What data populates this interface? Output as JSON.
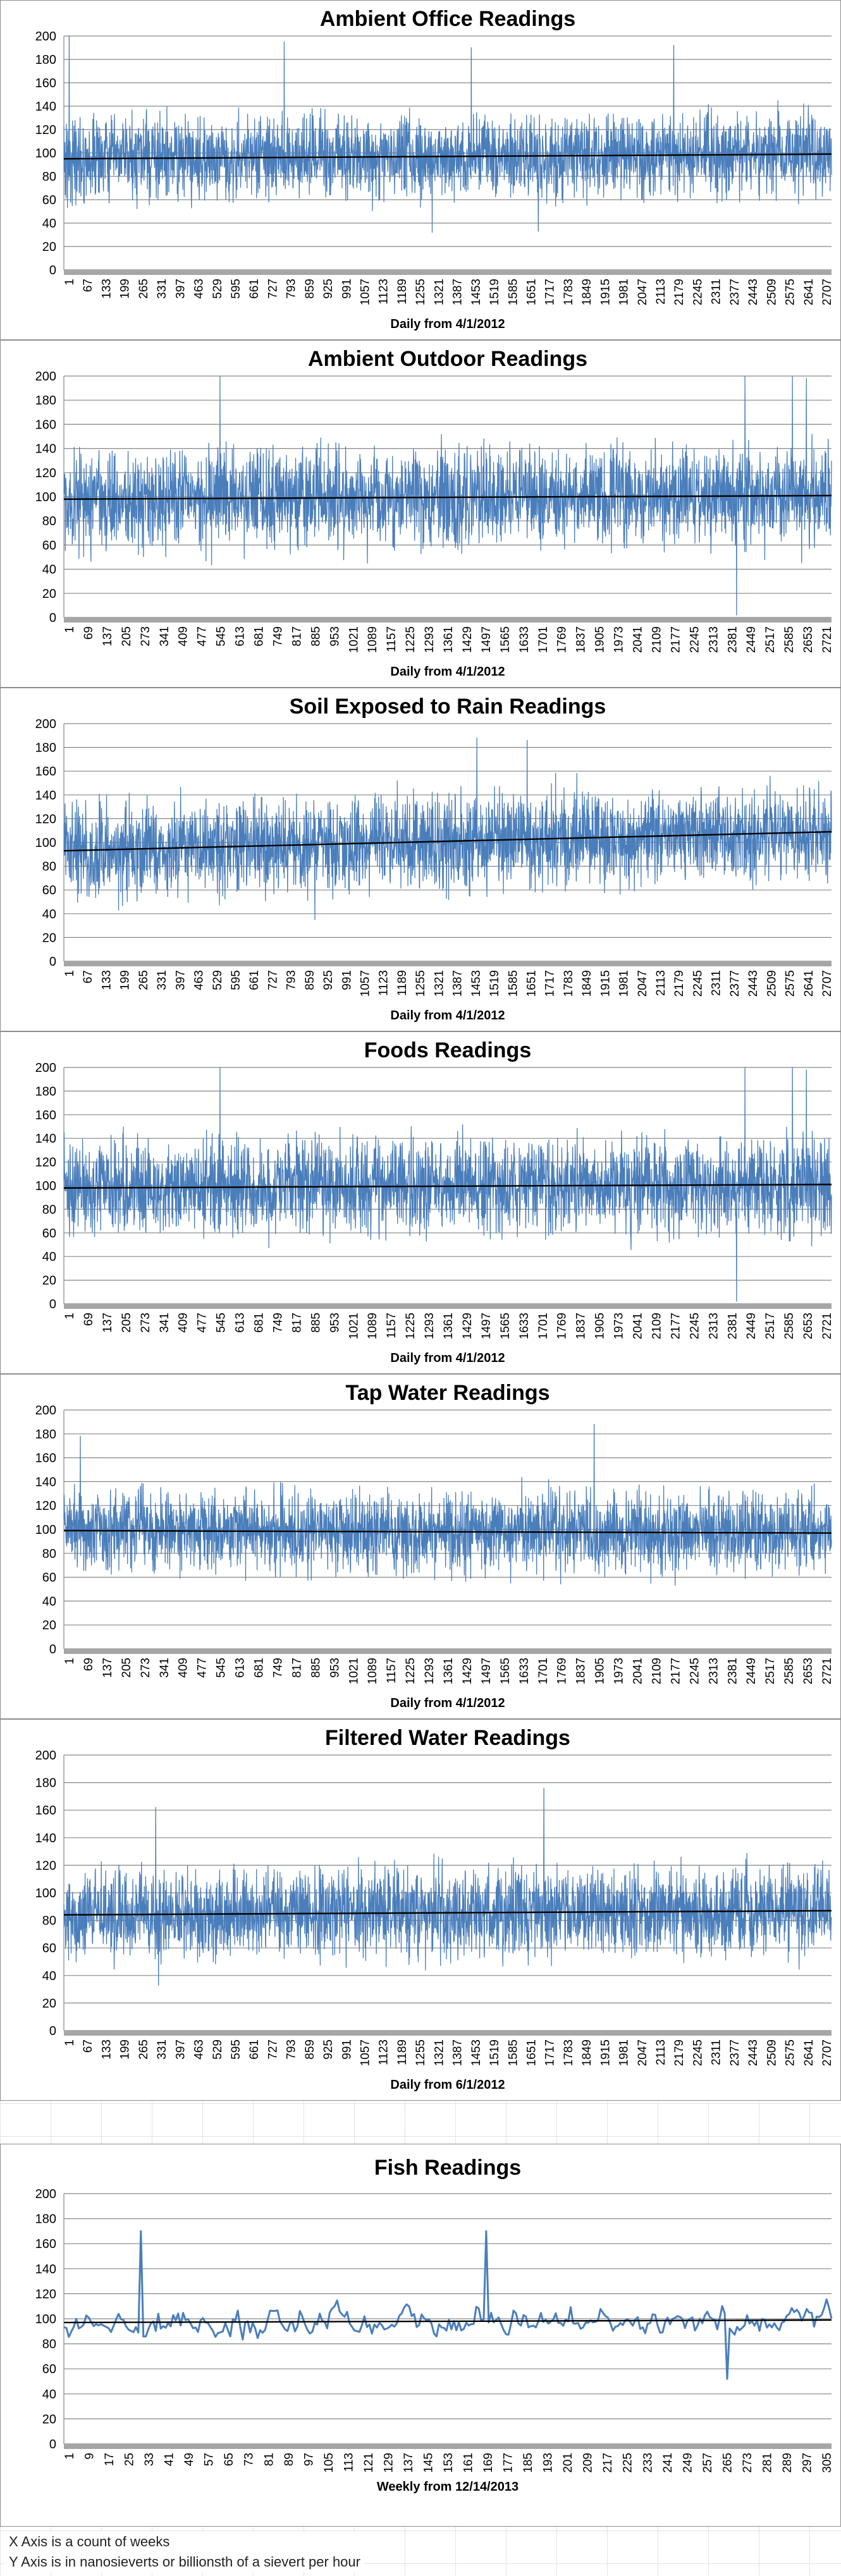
{
  "footnotes": {
    "x_note": "X Axis is a count of weeks",
    "y_note": "Y Axis is in nanosieverts or billionsth of a sievert per hour"
  },
  "colors": {
    "series": "#4a7ebb",
    "trend": "#000000",
    "grid": "#868686",
    "axis_text": "#000000"
  },
  "chart_data": [
    {
      "type": "line",
      "title": "Ambient Office Readings",
      "xlabel": "Daily from 4/1/2012",
      "ylabel": "",
      "ylim": [
        0,
        200
      ],
      "yticks": [
        0,
        20,
        40,
        60,
        80,
        100,
        120,
        140,
        160,
        180,
        200
      ],
      "x_ticks": [
        "1",
        "67",
        "133",
        "199",
        "265",
        "331",
        "397",
        "463",
        "529",
        "595",
        "661",
        "727",
        "793",
        "859",
        "925",
        "991",
        "1057",
        "1123",
        "1189",
        "1255",
        "1321",
        "1387",
        "1453",
        "1519",
        "1585",
        "1651",
        "1717",
        "1783",
        "1849",
        "1915",
        "1981",
        "2047",
        "2113",
        "2179",
        "2245",
        "2311",
        "2377",
        "2443",
        "2509",
        "2575",
        "2641",
        "2707"
      ],
      "n_points": 2750,
      "series_summary": {
        "mean": 97,
        "spread": 22,
        "min": 30,
        "max": 200
      },
      "spikes": [
        [
          20,
          200
        ],
        [
          790,
          195
        ],
        [
          1460,
          190
        ],
        [
          2185,
          192
        ],
        [
          1700,
          33
        ],
        [
          1320,
          32
        ]
      ],
      "trend": [
        [
          1,
          95
        ],
        [
          2750,
          99
        ]
      ],
      "grid": true,
      "legend": "none"
    },
    {
      "type": "line",
      "title": "Ambient Outdoor Readings",
      "xlabel": "Daily from 4/1/2012",
      "ylabel": "",
      "ylim": [
        0,
        200
      ],
      "yticks": [
        0,
        20,
        40,
        60,
        80,
        100,
        120,
        140,
        160,
        180,
        200
      ],
      "x_ticks": [
        "1",
        "69",
        "137",
        "205",
        "273",
        "341",
        "409",
        "477",
        "545",
        "613",
        "681",
        "749",
        "817",
        "885",
        "953",
        "1021",
        "1089",
        "1157",
        "1225",
        "1293",
        "1361",
        "1429",
        "1497",
        "1565",
        "1633",
        "1701",
        "1769",
        "1837",
        "1905",
        "1973",
        "2041",
        "2109",
        "2177",
        "2245",
        "2313",
        "2381",
        "2449",
        "2517",
        "2585",
        "2653",
        "2721"
      ],
      "n_points": 2750,
      "series_summary": {
        "mean": 100,
        "spread": 25,
        "min": 2,
        "max": 200
      },
      "spikes": [
        [
          560,
          200
        ],
        [
          2440,
          200
        ],
        [
          2610,
          200
        ],
        [
          2410,
          2
        ],
        [
          2660,
          198
        ]
      ],
      "trend": [
        [
          1,
          98
        ],
        [
          2750,
          101
        ]
      ],
      "grid": true,
      "legend": "none"
    },
    {
      "type": "line",
      "title": "Soil Exposed to Rain Readings",
      "xlabel": "Daily from 4/1/2012",
      "ylabel": "",
      "ylim": [
        0,
        200
      ],
      "yticks": [
        0,
        20,
        40,
        60,
        80,
        100,
        120,
        140,
        160,
        180,
        200
      ],
      "x_ticks": [
        "1",
        "67",
        "133",
        "199",
        "265",
        "331",
        "397",
        "463",
        "529",
        "595",
        "661",
        "727",
        "793",
        "859",
        "925",
        "991",
        "1057",
        "1123",
        "1189",
        "1255",
        "1321",
        "1387",
        "1453",
        "1519",
        "1585",
        "1651",
        "1717",
        "1783",
        "1849",
        "1915",
        "1981",
        "2047",
        "2113",
        "2179",
        "2245",
        "2311",
        "2377",
        "2443",
        "2509",
        "2575",
        "2641",
        "2707"
      ],
      "n_points": 2750,
      "series_summary": {
        "mean": 100,
        "spread": 24,
        "min": 33,
        "max": 188
      },
      "spikes": [
        [
          1480,
          188
        ],
        [
          1660,
          186
        ],
        [
          900,
          35
        ]
      ],
      "trend": [
        [
          1,
          93
        ],
        [
          2750,
          109
        ]
      ],
      "grid": true,
      "legend": "none"
    },
    {
      "type": "line",
      "title": "Foods Readings",
      "xlabel": "Daily from 4/1/2012",
      "ylabel": "",
      "ylim": [
        0,
        200
      ],
      "yticks": [
        0,
        20,
        40,
        60,
        80,
        100,
        120,
        140,
        160,
        180,
        200
      ],
      "x_ticks": [
        "1",
        "69",
        "137",
        "205",
        "273",
        "341",
        "409",
        "477",
        "545",
        "613",
        "681",
        "749",
        "817",
        "885",
        "953",
        "1021",
        "1089",
        "1157",
        "1225",
        "1293",
        "1361",
        "1429",
        "1497",
        "1565",
        "1633",
        "1701",
        "1769",
        "1837",
        "1905",
        "1973",
        "2041",
        "2109",
        "2177",
        "2245",
        "2313",
        "2381",
        "2449",
        "2517",
        "2585",
        "2653",
        "2721"
      ],
      "n_points": 2750,
      "series_summary": {
        "mean": 100,
        "spread": 25,
        "min": 2,
        "max": 200
      },
      "spikes": [
        [
          560,
          200
        ],
        [
          2440,
          200
        ],
        [
          2610,
          200
        ],
        [
          2410,
          2
        ],
        [
          2660,
          198
        ]
      ],
      "trend": [
        [
          1,
          98
        ],
        [
          2750,
          101
        ]
      ],
      "grid": true,
      "legend": "none"
    },
    {
      "type": "line",
      "title": "Tap Water Readings",
      "xlabel": "Daily from 4/1/2012",
      "ylabel": "",
      "ylim": [
        0,
        200
      ],
      "yticks": [
        0,
        20,
        40,
        60,
        80,
        100,
        120,
        140,
        160,
        180,
        200
      ],
      "x_ticks": [
        "1",
        "69",
        "137",
        "205",
        "273",
        "341",
        "409",
        "477",
        "545",
        "613",
        "681",
        "749",
        "817",
        "885",
        "953",
        "1021",
        "1089",
        "1157",
        "1225",
        "1293",
        "1361",
        "1429",
        "1497",
        "1565",
        "1633",
        "1701",
        "1769",
        "1837",
        "1905",
        "1973",
        "2041",
        "2109",
        "2177",
        "2245",
        "2313",
        "2381",
        "2449",
        "2517",
        "2585",
        "2653",
        "2721"
      ],
      "n_points": 2750,
      "series_summary": {
        "mean": 98,
        "spread": 21,
        "min": 40,
        "max": 188
      },
      "spikes": [
        [
          1900,
          188
        ],
        [
          60,
          178
        ]
      ],
      "trend": [
        [
          1,
          99
        ],
        [
          2750,
          97
        ]
      ],
      "grid": true,
      "legend": "none"
    },
    {
      "type": "line",
      "title": "Filtered Water Readings",
      "xlabel": "Daily from 6/1/2012",
      "ylabel": "",
      "ylim": [
        0,
        200
      ],
      "yticks": [
        0,
        20,
        40,
        60,
        80,
        100,
        120,
        140,
        160,
        180,
        200
      ],
      "x_ticks": [
        "1",
        "67",
        "133",
        "199",
        "265",
        "331",
        "397",
        "463",
        "529",
        "595",
        "661",
        "727",
        "793",
        "859",
        "925",
        "991",
        "1057",
        "1123",
        "1189",
        "1255",
        "1321",
        "1387",
        "1453",
        "1519",
        "1585",
        "1651",
        "1717",
        "1783",
        "1849",
        "1915",
        "1981",
        "2047",
        "2113",
        "2179",
        "2245",
        "2311",
        "2377",
        "2443",
        "2509",
        "2575",
        "2641",
        "2707"
      ],
      "n_points": 2750,
      "series_summary": {
        "mean": 86,
        "spread": 20,
        "min": 33,
        "max": 176
      },
      "spikes": [
        [
          1720,
          176
        ],
        [
          330,
          162
        ],
        [
          340,
          33
        ]
      ],
      "trend": [
        [
          1,
          84
        ],
        [
          2750,
          87
        ]
      ],
      "grid": true,
      "legend": "none"
    },
    {
      "type": "line",
      "title": "Fish Readings",
      "xlabel": "Weekly from 12/14/2013",
      "ylabel": "",
      "ylim": [
        0,
        200
      ],
      "yticks": [
        0,
        20,
        40,
        60,
        80,
        100,
        120,
        140,
        160,
        180,
        200
      ],
      "x_ticks": [
        "1",
        "9",
        "17",
        "25",
        "33",
        "41",
        "49",
        "57",
        "65",
        "73",
        "81",
        "89",
        "97",
        "105",
        "113",
        "121",
        "129",
        "137",
        "145",
        "153",
        "161",
        "169",
        "177",
        "185",
        "193",
        "201",
        "209",
        "217",
        "225",
        "233",
        "241",
        "249",
        "257",
        "265",
        "273",
        "281",
        "289",
        "297",
        "305"
      ],
      "n_points": 310,
      "series_summary": {
        "mean": 96,
        "spread": 14,
        "min": 52,
        "max": 170
      },
      "spikes": [
        [
          32,
          170
        ],
        [
          171,
          170
        ],
        [
          268,
          52
        ]
      ],
      "trend": [
        [
          1,
          97
        ],
        [
          310,
          99
        ]
      ],
      "grid": true,
      "legend": "none"
    }
  ]
}
